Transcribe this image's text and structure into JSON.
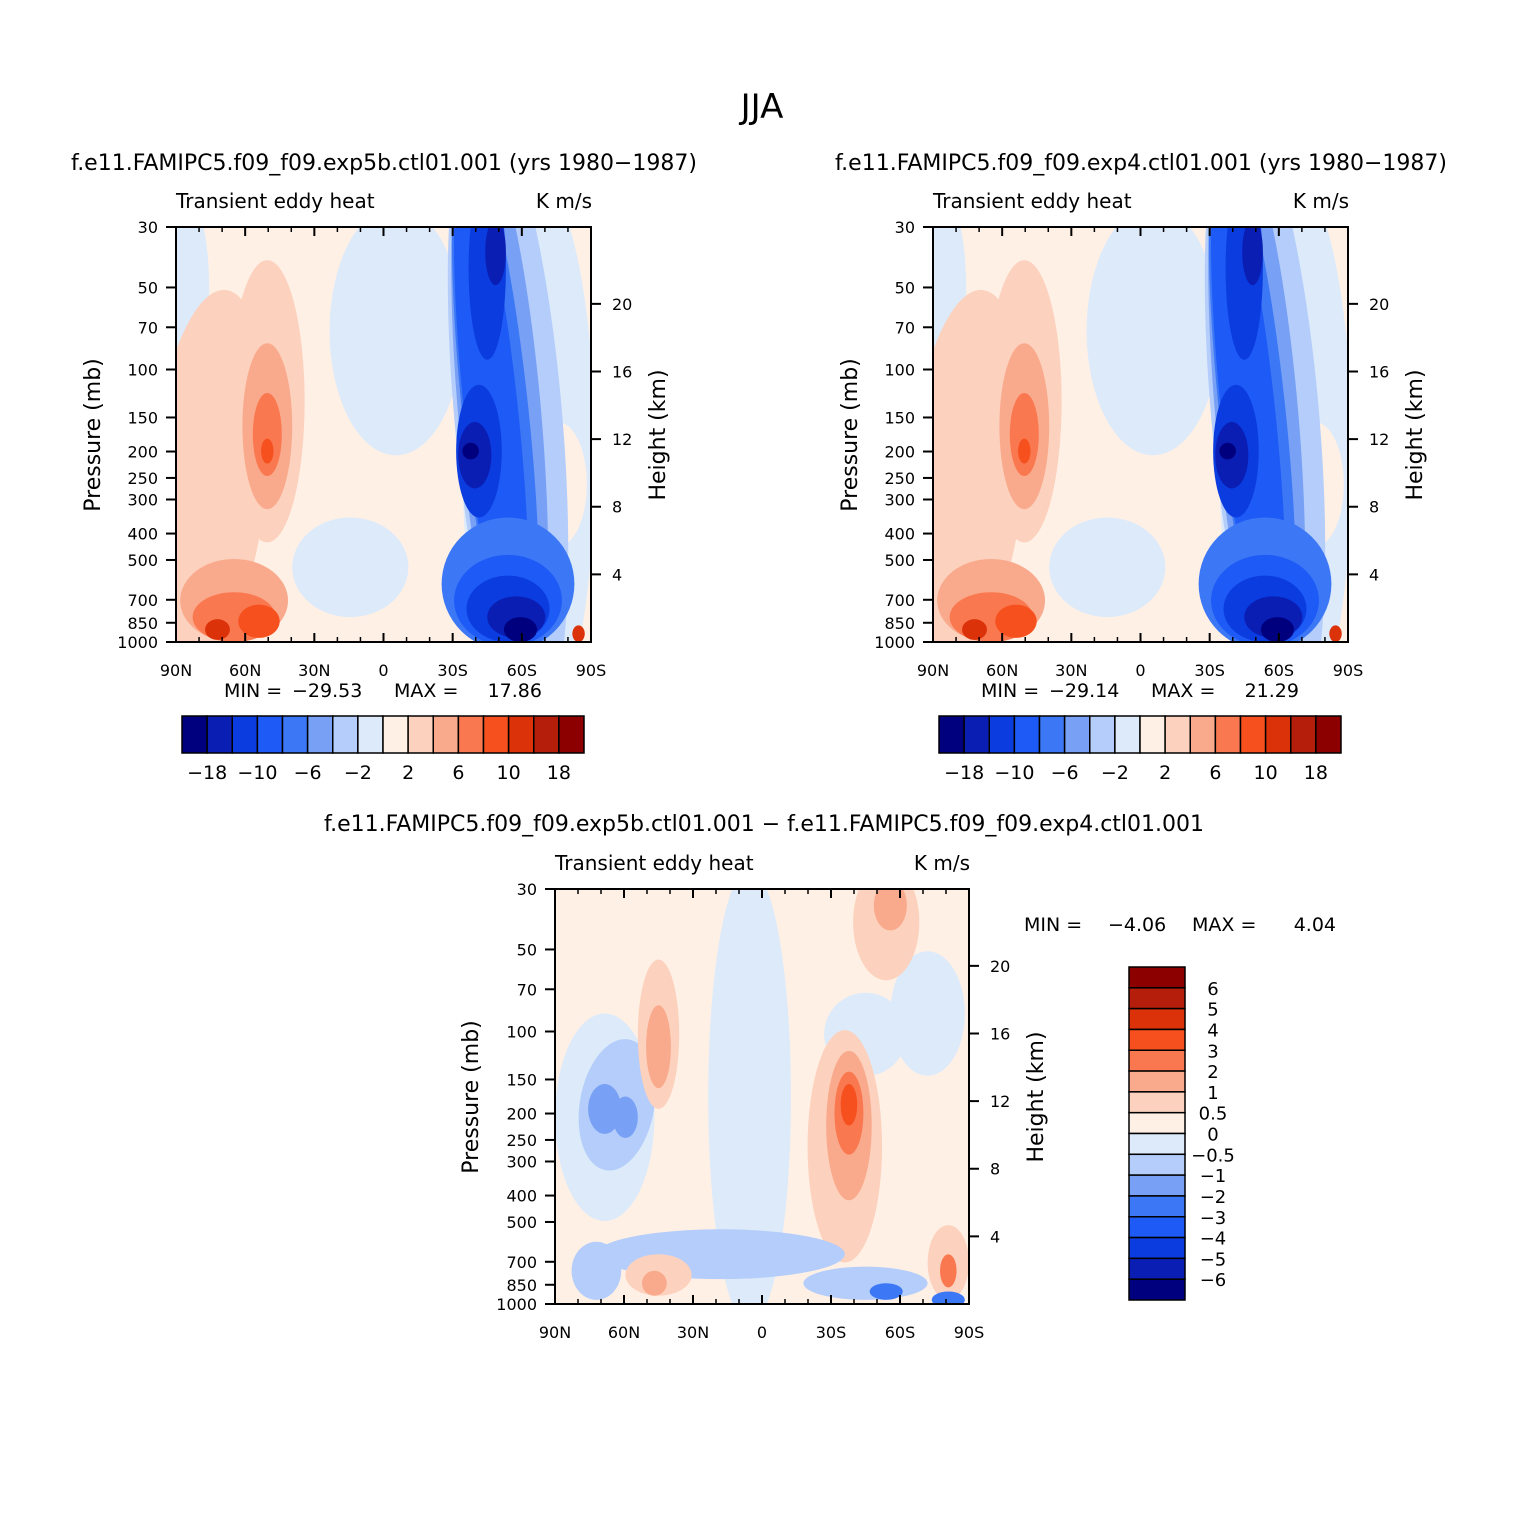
{
  "title": "JJA",
  "chart_data": [
    {
      "type": "heatmap",
      "case_title": "f.e11.FAMIPC5.f09_f09.exp5b.ctl01.001 (yrs 1980-1987)",
      "left_label": "Transient eddy heat",
      "right_label": "K m/s",
      "ylabel": "Pressure (mb)",
      "y2label": "Height (km)",
      "x_ticks": [
        "90N",
        "60N",
        "30N",
        "0",
        "30S",
        "60S",
        "90S"
      ],
      "y_ticks": [
        30,
        50,
        70,
        100,
        150,
        200,
        250,
        300,
        400,
        500,
        700,
        850,
        1000
      ],
      "height_ticks": [
        20,
        16,
        12,
        8,
        4
      ],
      "min_label": "MIN =",
      "min": "-29.53",
      "max_label": "MAX =",
      "max": "17.86",
      "levels": [
        -18,
        -14,
        -10,
        -8,
        -6,
        -4,
        -2,
        0,
        2,
        4,
        6,
        8,
        10,
        14,
        18
      ],
      "colorbar_labels": [
        "-18",
        "-10",
        "-6",
        "-2",
        "2",
        "6",
        "10",
        "18"
      ]
    },
    {
      "type": "heatmap",
      "case_title": "f.e11.FAMIPC5.f09_f09.exp4.ctl01.001 (yrs 1980-1987)",
      "left_label": "Transient eddy heat",
      "right_label": "K m/s",
      "ylabel": "Pressure (mb)",
      "y2label": "Height (km)",
      "x_ticks": [
        "90N",
        "60N",
        "30N",
        "0",
        "30S",
        "60S",
        "90S"
      ],
      "y_ticks": [
        30,
        50,
        70,
        100,
        150,
        200,
        250,
        300,
        400,
        500,
        700,
        850,
        1000
      ],
      "height_ticks": [
        20,
        16,
        12,
        8,
        4
      ],
      "min_label": "MIN =",
      "min": "-29.14",
      "max_label": "MAX =",
      "max": "21.29",
      "levels": [
        -18,
        -14,
        -10,
        -8,
        -6,
        -4,
        -2,
        0,
        2,
        4,
        6,
        8,
        10,
        14,
        18
      ],
      "colorbar_labels": [
        "-18",
        "-10",
        "-6",
        "-2",
        "2",
        "6",
        "10",
        "18"
      ]
    },
    {
      "type": "heatmap",
      "case_title": "f.e11.FAMIPC5.f09_f09.exp5b.ctl01.001 - f.e11.FAMIPC5.f09_f09.exp4.ctl01.001",
      "left_label": "Transient eddy heat",
      "right_label": "K m/s",
      "ylabel": "Pressure (mb)",
      "y2label": "Height (km)",
      "x_ticks": [
        "90N",
        "60N",
        "30N",
        "0",
        "30S",
        "60S",
        "90S"
      ],
      "y_ticks": [
        30,
        50,
        70,
        100,
        150,
        200,
        250,
        300,
        400,
        500,
        700,
        850,
        1000
      ],
      "height_ticks": [
        20,
        16,
        12,
        8,
        4
      ],
      "min_label": "MIN =",
      "min": "-4.06",
      "max_label": "MAX =",
      "max": "4.04",
      "levels": [
        -6,
        -5,
        -4,
        -3,
        -2,
        -1,
        -0.5,
        0,
        0.5,
        1,
        2,
        3,
        4,
        5,
        6
      ],
      "colorbar_labels": [
        "6",
        "5",
        "4",
        "3",
        "2",
        "1",
        "0.5",
        "0",
        "-0.5",
        "-1",
        "-2",
        "-3",
        "-4",
        "-5",
        "-6"
      ]
    }
  ],
  "colors": {
    "scale": [
      "#00007f",
      "#0a1eb4",
      "#0b3ce0",
      "#1e5af5",
      "#3c78f5",
      "#78a0f5",
      "#b4cdfa",
      "#dceafa",
      "#fff0e6",
      "#fcd2be",
      "#faaa8c",
      "#fa7850",
      "#f5501e",
      "#dc320a",
      "#b41e0a",
      "#8c0000"
    ]
  }
}
